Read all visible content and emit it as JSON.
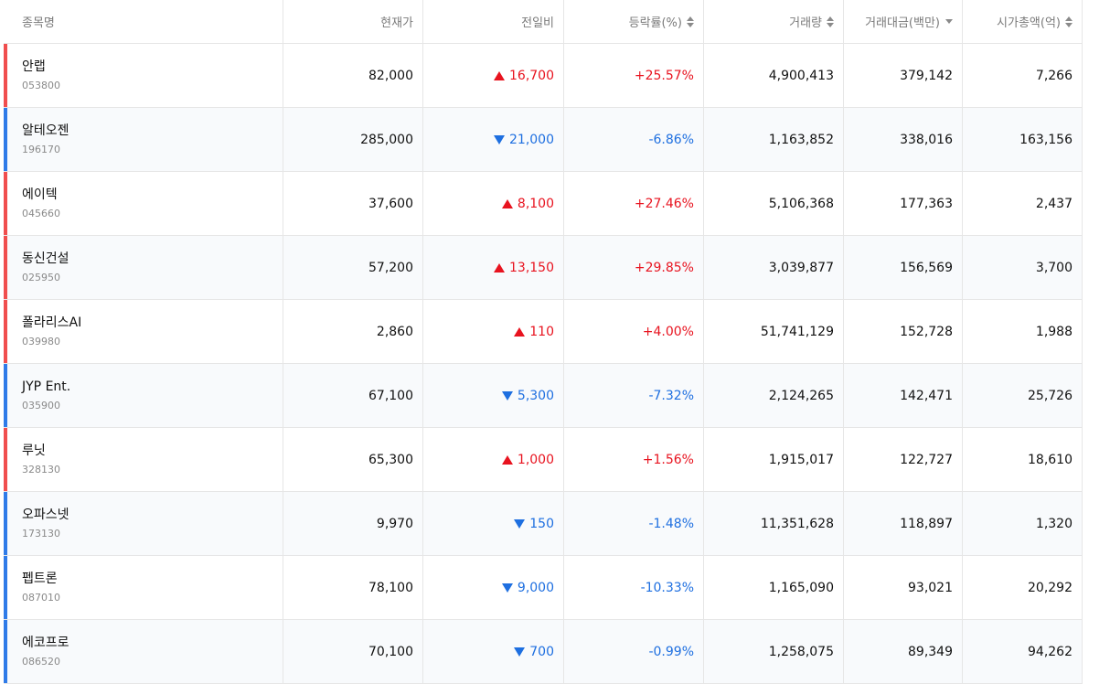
{
  "columns": [
    {
      "label": "종목명",
      "sort": "none"
    },
    {
      "label": "현재가",
      "sort": "none"
    },
    {
      "label": "전일비",
      "sort": "none"
    },
    {
      "label": "등락률(%)",
      "sort": "both"
    },
    {
      "label": "거래량",
      "sort": "both"
    },
    {
      "label": "거래대금(백만)",
      "sort": "desc"
    },
    {
      "label": "시가총액(억)",
      "sort": "both"
    }
  ],
  "colors": {
    "up": "#e8131f",
    "down": "#1e6fe0",
    "bar_up": "#f04e4e",
    "bar_down": "#2f7be8"
  },
  "rows": [
    {
      "name": "안랩",
      "code": "053800",
      "price": "82,000",
      "direction": "up",
      "change": "16,700",
      "rate": "+25.57%",
      "volume": "4,900,413",
      "amount": "379,142",
      "market_cap": "7,266"
    },
    {
      "name": "알테오젠",
      "code": "196170",
      "price": "285,000",
      "direction": "down",
      "change": "21,000",
      "rate": "-6.86%",
      "volume": "1,163,852",
      "amount": "338,016",
      "market_cap": "163,156"
    },
    {
      "name": "에이텍",
      "code": "045660",
      "price": "37,600",
      "direction": "up",
      "change": "8,100",
      "rate": "+27.46%",
      "volume": "5,106,368",
      "amount": "177,363",
      "market_cap": "2,437"
    },
    {
      "name": "동신건설",
      "code": "025950",
      "price": "57,200",
      "direction": "up",
      "change": "13,150",
      "rate": "+29.85%",
      "volume": "3,039,877",
      "amount": "156,569",
      "market_cap": "3,700"
    },
    {
      "name": "폴라리스AI",
      "code": "039980",
      "price": "2,860",
      "direction": "up",
      "change": "110",
      "rate": "+4.00%",
      "volume": "51,741,129",
      "amount": "152,728",
      "market_cap": "1,988"
    },
    {
      "name": "JYP Ent.",
      "code": "035900",
      "price": "67,100",
      "direction": "down",
      "change": "5,300",
      "rate": "-7.32%",
      "volume": "2,124,265",
      "amount": "142,471",
      "market_cap": "25,726"
    },
    {
      "name": "루닛",
      "code": "328130",
      "price": "65,300",
      "direction": "up",
      "change": "1,000",
      "rate": "+1.56%",
      "volume": "1,915,017",
      "amount": "122,727",
      "market_cap": "18,610"
    },
    {
      "name": "오파스넷",
      "code": "173130",
      "price": "9,970",
      "direction": "down",
      "change": "150",
      "rate": "-1.48%",
      "volume": "11,351,628",
      "amount": "118,897",
      "market_cap": "1,320"
    },
    {
      "name": "펩트론",
      "code": "087010",
      "price": "78,100",
      "direction": "down",
      "change": "9,000",
      "rate": "-10.33%",
      "volume": "1,165,090",
      "amount": "93,021",
      "market_cap": "20,292"
    },
    {
      "name": "에코프로",
      "code": "086520",
      "price": "70,100",
      "direction": "down",
      "change": "700",
      "rate": "-0.99%",
      "volume": "1,258,075",
      "amount": "89,349",
      "market_cap": "94,262"
    }
  ]
}
